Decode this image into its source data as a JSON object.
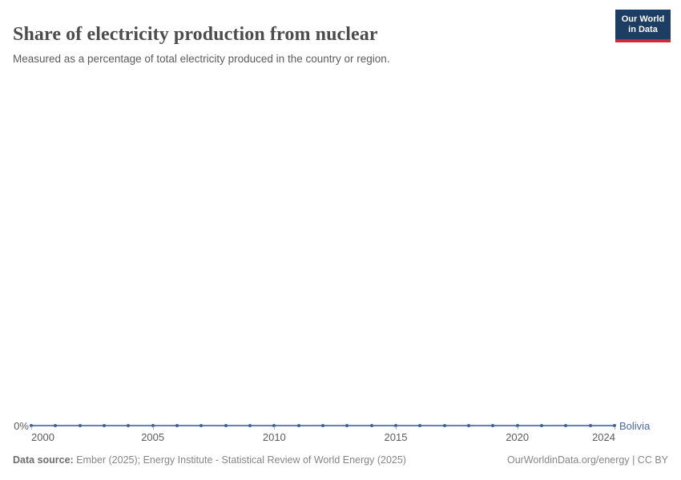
{
  "header": {
    "title": "Share of electricity production from nuclear",
    "subtitle": "Measured as a percentage of total electricity produced in the country or region.",
    "logo": {
      "line1": "Our World",
      "line2": "in Data",
      "bg_color": "#1d3d63",
      "bar_color": "#cc2a36"
    }
  },
  "chart_data": {
    "type": "line",
    "title": "Share of electricity production from nuclear",
    "subtitle": "Measured as a percentage of total electricity produced in the country or region.",
    "entity": "Bolivia",
    "x": [
      2000,
      2001,
      2002,
      2003,
      2004,
      2005,
      2006,
      2007,
      2008,
      2009,
      2010,
      2011,
      2012,
      2013,
      2014,
      2015,
      2016,
      2017,
      2018,
      2019,
      2020,
      2021,
      2022,
      2023,
      2024
    ],
    "series": [
      {
        "name": "Bolivia",
        "values": [
          0,
          0,
          0,
          0,
          0,
          0,
          0,
          0,
          0,
          0,
          0,
          0,
          0,
          0,
          0,
          0,
          0,
          0,
          0,
          0,
          0,
          0,
          0,
          0,
          0
        ]
      }
    ],
    "unit": "%",
    "x_ticks": [
      2000,
      2005,
      2010,
      2015,
      2020,
      2024
    ],
    "y_tick_labels": [
      "0%"
    ],
    "grid": false,
    "legend_position": "end-of-line",
    "colors": {
      "line": "#6482b9",
      "marker": "#3c5fa0",
      "entity_label": "#4b69a5"
    }
  },
  "footer": {
    "source_label": "Data source:",
    "source_text": " Ember (2025); Energy Institute - Statistical Review of World Energy (2025)",
    "credit": "OurWorldinData.org/energy | CC BY"
  }
}
